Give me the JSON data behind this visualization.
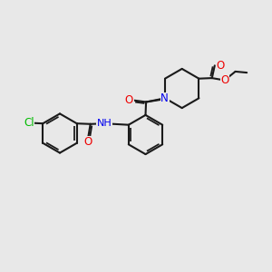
{
  "bg_color": "#e8e8e8",
  "bond_color": "#1a1a1a",
  "bond_width": 1.5,
  "dbo": 0.055,
  "atom_colors": {
    "Cl": "#00bb00",
    "O": "#ee0000",
    "N": "#0000ee",
    "C": "#1a1a1a"
  },
  "fs": 8.5,
  "figsize": [
    3.0,
    3.0
  ],
  "dpi": 100
}
